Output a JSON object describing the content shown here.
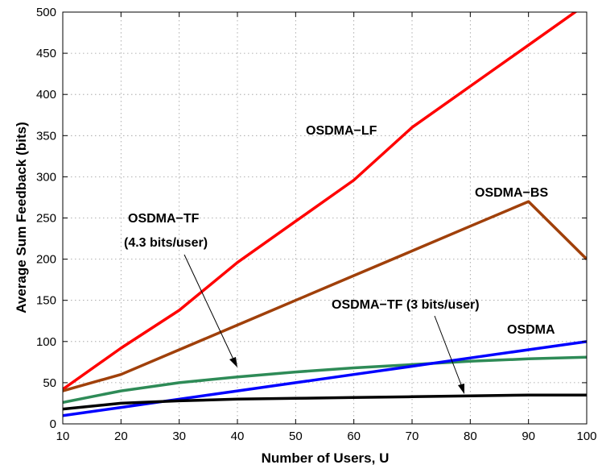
{
  "chart_data": {
    "type": "line",
    "title": "",
    "xlabel": "Number of Users, U",
    "ylabel": "Average Sum Feedback (bits)",
    "xlim": [
      10,
      100
    ],
    "ylim": [
      0,
      500
    ],
    "xticks": [
      10,
      20,
      30,
      40,
      50,
      60,
      70,
      80,
      90,
      100
    ],
    "yticks": [
      0,
      50,
      100,
      150,
      200,
      250,
      300,
      350,
      400,
      450,
      500
    ],
    "grid": true,
    "series": [
      {
        "name": "OSDMA-LF",
        "color": "#ff0000",
        "x": [
          10,
          20,
          30,
          40,
          50,
          60,
          70,
          80,
          90,
          100
        ],
        "y": [
          42,
          92,
          138,
          196,
          246,
          296,
          360,
          410,
          460,
          510
        ]
      },
      {
        "name": "OSDMA-BS",
        "color": "#a0400a",
        "x": [
          10,
          20,
          30,
          40,
          50,
          60,
          70,
          80,
          90,
          100
        ],
        "y": [
          40,
          60,
          90,
          120,
          150,
          180,
          210,
          240,
          270,
          200
        ]
      },
      {
        "name": "OSDMA-TF (4.3 bits/user)",
        "color": "#2e8b57",
        "x": [
          10,
          20,
          30,
          40,
          50,
          60,
          70,
          80,
          90,
          100
        ],
        "y": [
          26,
          40,
          50,
          57,
          63,
          68,
          72,
          76,
          79,
          81
        ]
      },
      {
        "name": "OSDMA",
        "color": "#0000ff",
        "x": [
          10,
          20,
          30,
          40,
          50,
          60,
          70,
          80,
          90,
          100
        ],
        "y": [
          10,
          20,
          30,
          40,
          50,
          60,
          70,
          80,
          90,
          100
        ]
      },
      {
        "name": "OSDMA-TF (3 bits/user)",
        "color": "#000000",
        "x": [
          10,
          20,
          30,
          40,
          50,
          60,
          70,
          80,
          90,
          100
        ],
        "y": [
          18,
          25,
          28,
          30,
          31,
          32,
          33,
          34,
          35,
          35
        ]
      }
    ],
    "annotations": [
      {
        "text": "OSDMA−LF"
      },
      {
        "text": "OSDMA−BS"
      },
      {
        "text": "OSDMA−TF"
      },
      {
        "text": "(4.3 bits/user)"
      },
      {
        "text": "OSDMA−TF (3 bits/user)"
      },
      {
        "text": "OSDMA"
      }
    ]
  }
}
